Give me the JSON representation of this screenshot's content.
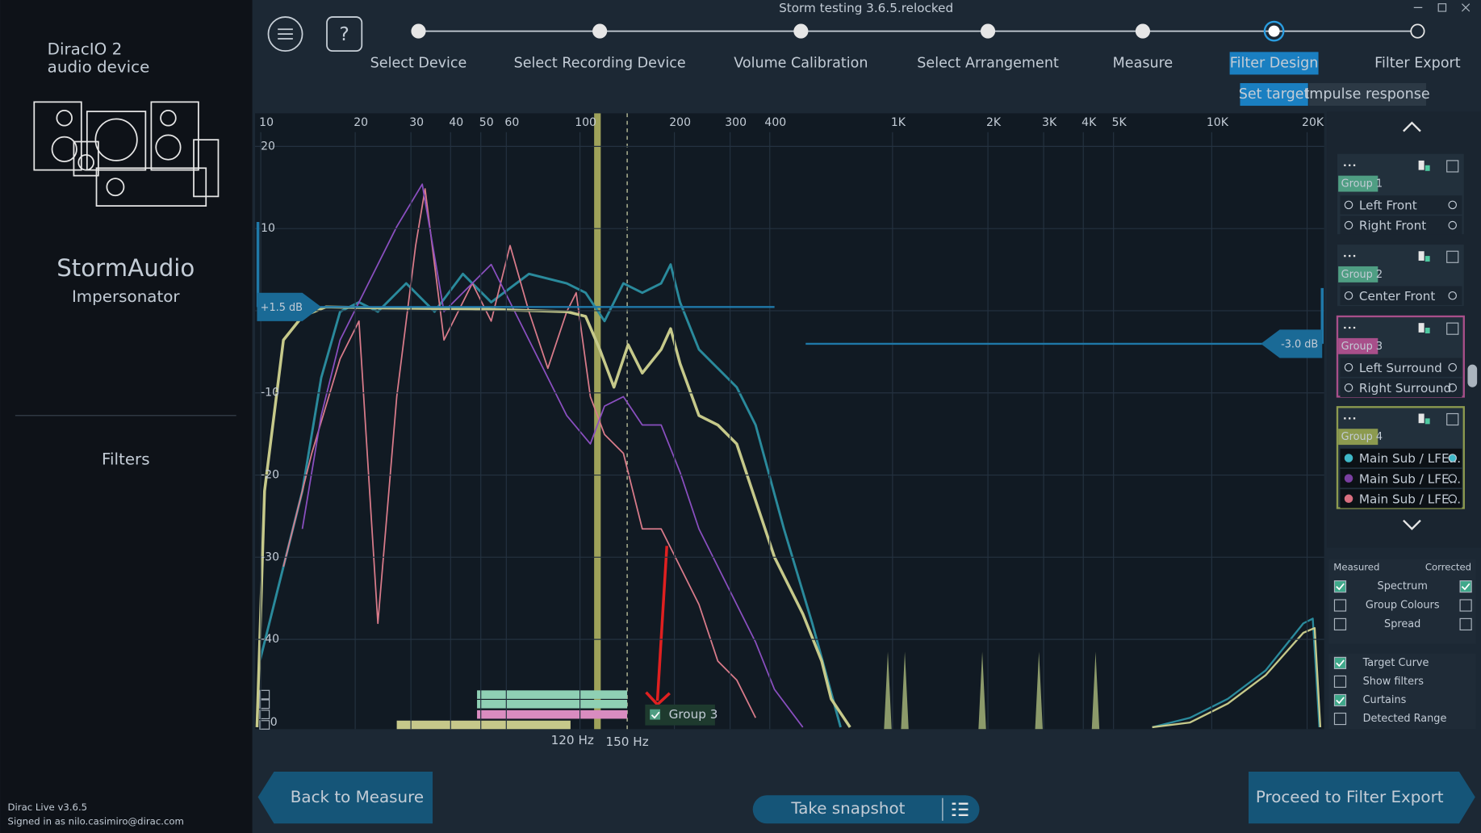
{
  "window_title": "Storm testing 3.6.5.relocked",
  "sidebar": {
    "product": [
      "DiracIO 2",
      "audio device"
    ],
    "brand": "StormAudio",
    "model": "Impersonator",
    "nav": "Filters",
    "version": "Dirac Live v3.6.5",
    "signed_in": "Signed in as nilo.casimiro@dirac.com"
  },
  "steps": {
    "items": [
      "Select Device",
      "Select Recording Device",
      "Volume Calibration",
      "Select Arrangement",
      "Measure",
      "Filter Design",
      "Filter Export"
    ],
    "active": 5
  },
  "subtabs": {
    "items": [
      "Set target",
      "Impulse response"
    ],
    "active": 0
  },
  "graph": {
    "x_ticks": [
      "10",
      "20",
      "30",
      "40",
      "50",
      "60",
      "100",
      "200",
      "300",
      "400",
      "1K",
      "2K",
      "3K",
      "4K",
      "5K",
      "10K",
      "20K"
    ],
    "y_ticks": [
      "20",
      "10",
      "-10",
      "-20",
      "-30",
      "-40"
    ],
    "left_target": "+1.5 dB",
    "right_target": "-3.0 dB",
    "curtain_labels": [
      "120 Hz",
      "150 Hz"
    ],
    "curtain_zero": "0",
    "group_toggle": "Group 3"
  },
  "groups": [
    {
      "name": "Group 1",
      "color": "#4f9e83",
      "channels": [
        "Left Front",
        "Right Front"
      ]
    },
    {
      "name": "Group 2",
      "color": "#4f9e83",
      "channels": [
        "Center Front"
      ]
    },
    {
      "name": "Group 3",
      "color": "#a84f8a",
      "channels": [
        "Left Surround",
        "Right Surround"
      ]
    },
    {
      "name": "Group 4",
      "color": "#8c9a4f",
      "channels": [
        "Main Sub / LFE...",
        "Main Sub / LFE...",
        "Main Sub / LFE..."
      ],
      "channel_colors": [
        "#3fb8c8",
        "#7a3fa0",
        "#d96f7f"
      ]
    }
  ],
  "display_options": {
    "measured": "Measured",
    "corrected": "Corrected",
    "rows": [
      {
        "label": "Spectrum",
        "measured": true,
        "corrected": true
      },
      {
        "label": "Group Colours",
        "measured": false,
        "corrected": false
      },
      {
        "label": "Spread",
        "measured": false,
        "corrected": false
      }
    ]
  },
  "toggles": [
    {
      "label": "Target Curve",
      "checked": true
    },
    {
      "label": "Show filters",
      "checked": false
    },
    {
      "label": "Curtains",
      "checked": true
    },
    {
      "label": "Detected Range",
      "checked": false
    }
  ],
  "buttons": {
    "back": "Back to Measure",
    "snapshot": "Take snapshot",
    "proceed": "Proceed to Filter Export"
  }
}
